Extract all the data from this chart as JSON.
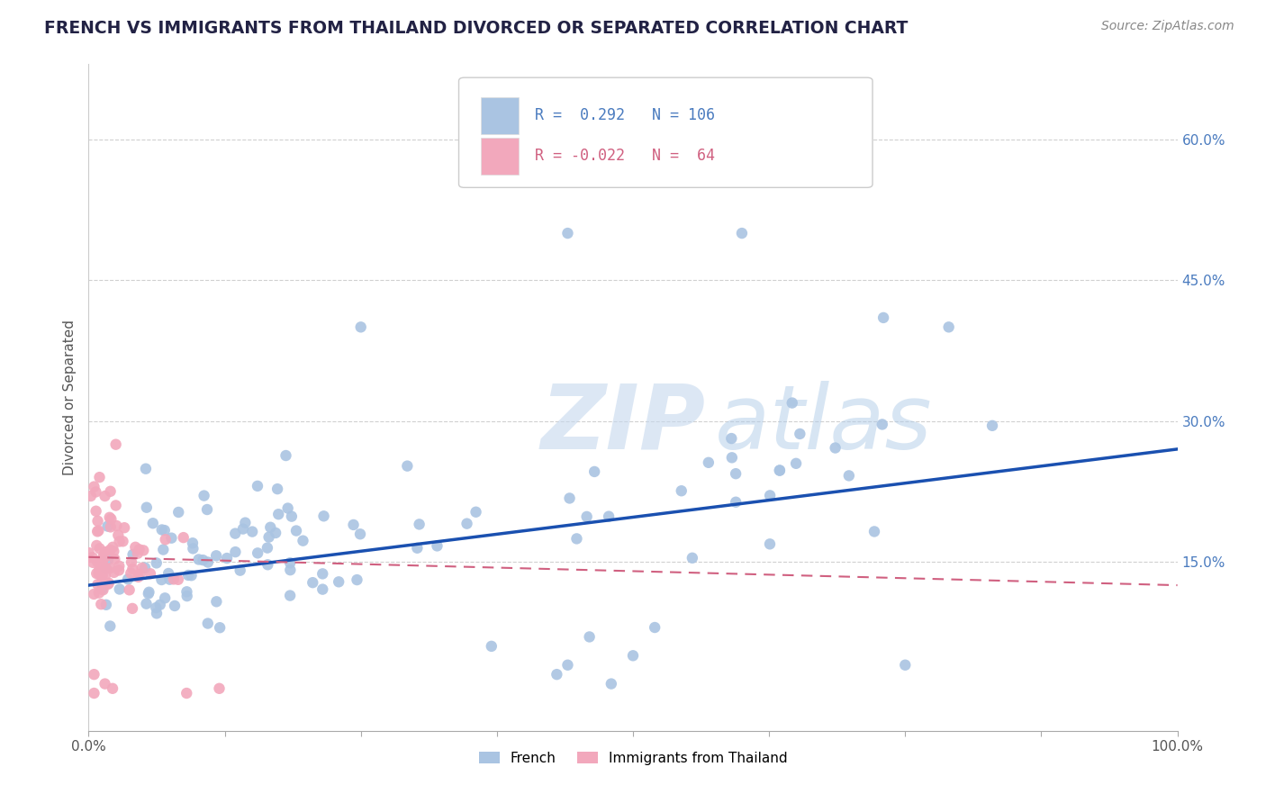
{
  "title": "FRENCH VS IMMIGRANTS FROM THAILAND DIVORCED OR SEPARATED CORRELATION CHART",
  "source": "Source: ZipAtlas.com",
  "ylabel": "Divorced or Separated",
  "xlim": [
    0.0,
    1.0
  ],
  "ylim": [
    -0.03,
    0.68
  ],
  "yticks": [
    0.0,
    0.15,
    0.3,
    0.45,
    0.6
  ],
  "french_color": "#aac4e2",
  "thai_color": "#f2a8bc",
  "french_line_color": "#1a50b0",
  "thai_line_color": "#d06080",
  "R_french": 0.292,
  "N_french": 106,
  "R_thai": -0.022,
  "N_thai": 64,
  "watermark_zip": "ZIP",
  "watermark_atlas": "atlas",
  "legend_labels": [
    "French",
    "Immigrants from Thailand"
  ],
  "title_fontsize": 13.5,
  "axis_label_fontsize": 11,
  "tick_fontsize": 11,
  "legend_fontsize": 11,
  "source_fontsize": 10,
  "background_color": "#ffffff",
  "grid_color": "#d0d0d0",
  "right_ytick_color": "#4a7bbf",
  "french_line_start_y": 0.125,
  "french_line_end_y": 0.27,
  "thai_line_start_y": 0.155,
  "thai_line_end_y": 0.125
}
